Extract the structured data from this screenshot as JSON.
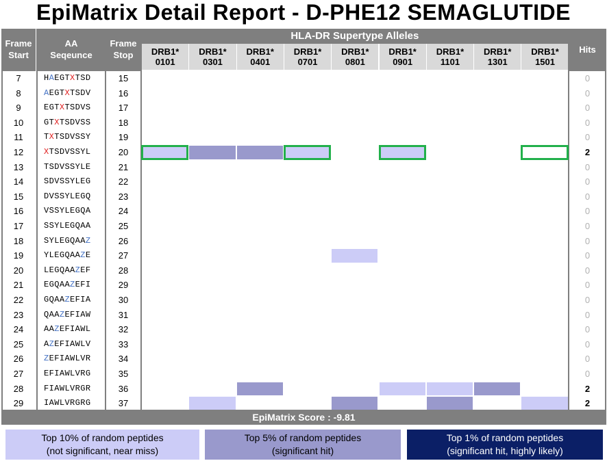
{
  "title": "EpiMatrix Detail Report  -  D-PHE12 SEMAGLUTIDE",
  "headers": {
    "frame_start": [
      "Frame",
      "Start"
    ],
    "aa_sequence": [
      "AA",
      "Seqeunce"
    ],
    "frame_stop": [
      "Frame",
      "Stop"
    ],
    "alleles_group": "HLA-DR Supertype Alleles",
    "hits": "Hits"
  },
  "alleles": [
    [
      "DRB1*",
      "0101"
    ],
    [
      "DRB1*",
      "0301"
    ],
    [
      "DRB1*",
      "0401"
    ],
    [
      "DRB1*",
      "0701"
    ],
    [
      "DRB1*",
      "0801"
    ],
    [
      "DRB1*",
      "0901"
    ],
    [
      "DRB1*",
      "1101"
    ],
    [
      "DRB1*",
      "1301"
    ],
    [
      "DRB1*",
      "1501"
    ]
  ],
  "rows": [
    {
      "start": "7",
      "seq": "HAEGTXTSD",
      "stop": "15",
      "hits": "0"
    },
    {
      "start": "8",
      "seq": "AEGTXTSDV",
      "stop": "16",
      "hits": "0"
    },
    {
      "start": "9",
      "seq": "EGTXTSDVS",
      "stop": "17",
      "hits": "0"
    },
    {
      "start": "10",
      "seq": "GTXTSDVSS",
      "stop": "18",
      "hits": "0"
    },
    {
      "start": "11",
      "seq": "TXTSDVSSY",
      "stop": "19",
      "hits": "0"
    },
    {
      "start": "12",
      "seq": "XTSDVSSYL",
      "stop": "20",
      "hits": "2"
    },
    {
      "start": "13",
      "seq": "TSDVSSYLE",
      "stop": "21",
      "hits": "0"
    },
    {
      "start": "14",
      "seq": "SDVSSYLEG",
      "stop": "22",
      "hits": "0"
    },
    {
      "start": "15",
      "seq": "DVSSYLEGQ",
      "stop": "23",
      "hits": "0"
    },
    {
      "start": "16",
      "seq": "VSSYLEGQA",
      "stop": "24",
      "hits": "0"
    },
    {
      "start": "17",
      "seq": "SSYLEGQAA",
      "stop": "25",
      "hits": "0"
    },
    {
      "start": "18",
      "seq": "SYLEGQAAZ",
      "stop": "26",
      "hits": "0"
    },
    {
      "start": "19",
      "seq": "YLEGQAAZE",
      "stop": "27",
      "hits": "0"
    },
    {
      "start": "20",
      "seq": "LEGQAAZEF",
      "stop": "28",
      "hits": "0"
    },
    {
      "start": "21",
      "seq": "EGQAAZEFI",
      "stop": "29",
      "hits": "0"
    },
    {
      "start": "22",
      "seq": "GQAAZEFIA",
      "stop": "30",
      "hits": "0"
    },
    {
      "start": "23",
      "seq": "QAAZEFIAW",
      "stop": "31",
      "hits": "0"
    },
    {
      "start": "24",
      "seq": "AAZEFIAWL",
      "stop": "32",
      "hits": "0"
    },
    {
      "start": "25",
      "seq": "AZEFIAWLV",
      "stop": "33",
      "hits": "0"
    },
    {
      "start": "26",
      "seq": "ZEFIAWLVR",
      "stop": "34",
      "hits": "0"
    },
    {
      "start": "27",
      "seq": "EFIAWLVRG",
      "stop": "35",
      "hits": "0"
    },
    {
      "start": "28",
      "seq": "FIAWLVRGR",
      "stop": "36",
      "hits": "2"
    },
    {
      "start": "29",
      "seq": "IAWLVRGRG",
      "stop": "37",
      "hits": "2"
    }
  ],
  "highlight_letters": {
    "A": "#4472c4",
    "X": "#e02020",
    "Z": "#4472c4"
  },
  "highlight_rule": "A highlighted only in first two rows",
  "cells": [
    {
      "row": 5,
      "allele": 0,
      "level": "top10",
      "boxed": true
    },
    {
      "row": 5,
      "allele": 1,
      "level": "top5",
      "boxed": false
    },
    {
      "row": 5,
      "allele": 2,
      "level": "top5",
      "boxed": false
    },
    {
      "row": 5,
      "allele": 3,
      "level": "top10",
      "boxed": true
    },
    {
      "row": 5,
      "allele": 5,
      "level": "top10",
      "boxed": true
    },
    {
      "row": 5,
      "allele": 8,
      "level": "none",
      "boxed": true
    },
    {
      "row": 12,
      "allele": 4,
      "level": "top10",
      "boxed": false
    },
    {
      "row": 21,
      "allele": 2,
      "level": "top5",
      "boxed": false
    },
    {
      "row": 21,
      "allele": 5,
      "level": "top10",
      "boxed": false
    },
    {
      "row": 21,
      "allele": 6,
      "level": "top10",
      "boxed": false
    },
    {
      "row": 21,
      "allele": 7,
      "level": "top5",
      "boxed": false
    },
    {
      "row": 22,
      "allele": 1,
      "level": "top10",
      "boxed": false
    },
    {
      "row": 22,
      "allele": 4,
      "level": "top5",
      "boxed": false
    },
    {
      "row": 22,
      "allele": 6,
      "level": "top5",
      "boxed": false
    },
    {
      "row": 22,
      "allele": 8,
      "level": "top10",
      "boxed": false
    }
  ],
  "score": "EpiMatrix Score :  -9.81",
  "legend": [
    {
      "line1": "Top 10% of random peptides",
      "line2": "(not significant, near miss)",
      "level": "top10"
    },
    {
      "line1": "Top 5% of random peptides",
      "line2": "(significant hit)",
      "level": "top5"
    },
    {
      "line1": "Top 1% of random peptides",
      "line2": "(significant hit, highly likely)",
      "level": "top1"
    }
  ],
  "colors": {
    "top10": "#ccccf7",
    "top5": "#9999cc",
    "top1": "#0b1f66",
    "box": "#22b04b",
    "header": "#7f7f7f",
    "subheader": "#d9d9d9",
    "zero_hits": "#b0b0b0"
  }
}
